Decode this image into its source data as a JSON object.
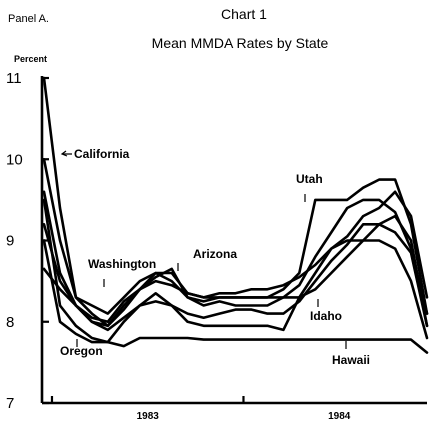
{
  "panel_label": "Panel A.",
  "chart_data": {
    "type": "line",
    "title": "Chart 1",
    "subtitle": "Mean MMDA Rates by State",
    "ylabel": "Percent",
    "xlabel": "",
    "ylim": [
      7,
      11
    ],
    "yticks": [
      7,
      8,
      9,
      10,
      11
    ],
    "x_categories": [
      "1983",
      "1984"
    ],
    "grid": false,
    "x": [
      "Dec 1982",
      "Jan 1983",
      "Feb 1983",
      "Mar 1983",
      "Apr 1983",
      "May 1983",
      "Jun 1983",
      "Jul 1983",
      "Aug 1983",
      "Sep 1983",
      "Oct 1983",
      "Nov 1983",
      "Dec 1983",
      "Jan 1984",
      "Feb 1984",
      "Mar 1984",
      "Apr 1984",
      "May 1984",
      "Jun 1984",
      "Jul 1984",
      "Aug 1984",
      "Sep 1984",
      "Oct 1984",
      "Nov 1984",
      "Dec 1984"
    ],
    "series": [
      {
        "name": "California",
        "values": [
          11.0,
          9.4,
          8.3,
          8.1,
          7.95,
          8.2,
          8.4,
          8.5,
          8.45,
          8.35,
          8.3,
          8.3,
          8.3,
          8.3,
          8.3,
          8.3,
          8.3,
          8.4,
          8.6,
          8.8,
          9.0,
          9.2,
          9.3,
          9.0,
          7.95
        ]
      },
      {
        "name": "Utah",
        "values": [
          10.0,
          9.0,
          8.3,
          8.2,
          8.1,
          8.3,
          8.5,
          8.6,
          8.5,
          8.3,
          8.25,
          8.3,
          8.3,
          8.3,
          8.3,
          8.4,
          8.6,
          9.5,
          9.5,
          9.5,
          9.65,
          9.75,
          9.75,
          9.2,
          8.1
        ]
      },
      {
        "name": "Arizona",
        "values": [
          9.6,
          8.6,
          8.2,
          8.05,
          8.0,
          8.25,
          8.4,
          8.55,
          8.65,
          8.3,
          8.2,
          8.25,
          8.2,
          8.2,
          8.2,
          8.3,
          8.45,
          8.8,
          9.1,
          9.4,
          9.5,
          9.5,
          9.35,
          8.9,
          8.1
        ]
      },
      {
        "name": "Washington",
        "values": [
          8.65,
          8.4,
          8.2,
          8.0,
          7.95,
          8.15,
          8.4,
          8.6,
          8.6,
          8.35,
          8.3,
          8.35,
          8.35,
          8.4,
          8.4,
          8.45,
          8.55,
          8.7,
          8.9,
          9.05,
          9.3,
          9.4,
          9.6,
          9.3,
          8.3
        ]
      },
      {
        "name": "Idaho",
        "values": [
          9.2,
          8.5,
          8.2,
          8.0,
          7.9,
          8.05,
          8.2,
          8.35,
          8.2,
          8.1,
          8.05,
          8.1,
          8.15,
          8.15,
          8.1,
          8.1,
          8.25,
          8.5,
          8.75,
          8.95,
          9.2,
          9.2,
          9.1,
          8.85,
          7.95
        ]
      },
      {
        "name": "Oregon",
        "values": [
          9.0,
          8.0,
          7.85,
          7.75,
          7.75,
          8.0,
          8.2,
          8.25,
          8.2,
          8.0,
          7.95,
          7.95,
          7.95,
          7.95,
          7.95,
          7.9,
          8.3,
          8.6,
          8.9,
          9.0,
          9.0,
          9.0,
          8.9,
          8.5,
          7.8
        ]
      },
      {
        "name": "Hawaii",
        "values": [
          9.5,
          8.2,
          7.95,
          7.8,
          7.75,
          7.7,
          7.8,
          7.8,
          7.8,
          7.8,
          7.78,
          7.78,
          7.78,
          7.78,
          7.78,
          7.78,
          7.78,
          7.78,
          7.78,
          7.78,
          7.78,
          7.78,
          7.78,
          7.78,
          7.62
        ]
      }
    ]
  }
}
